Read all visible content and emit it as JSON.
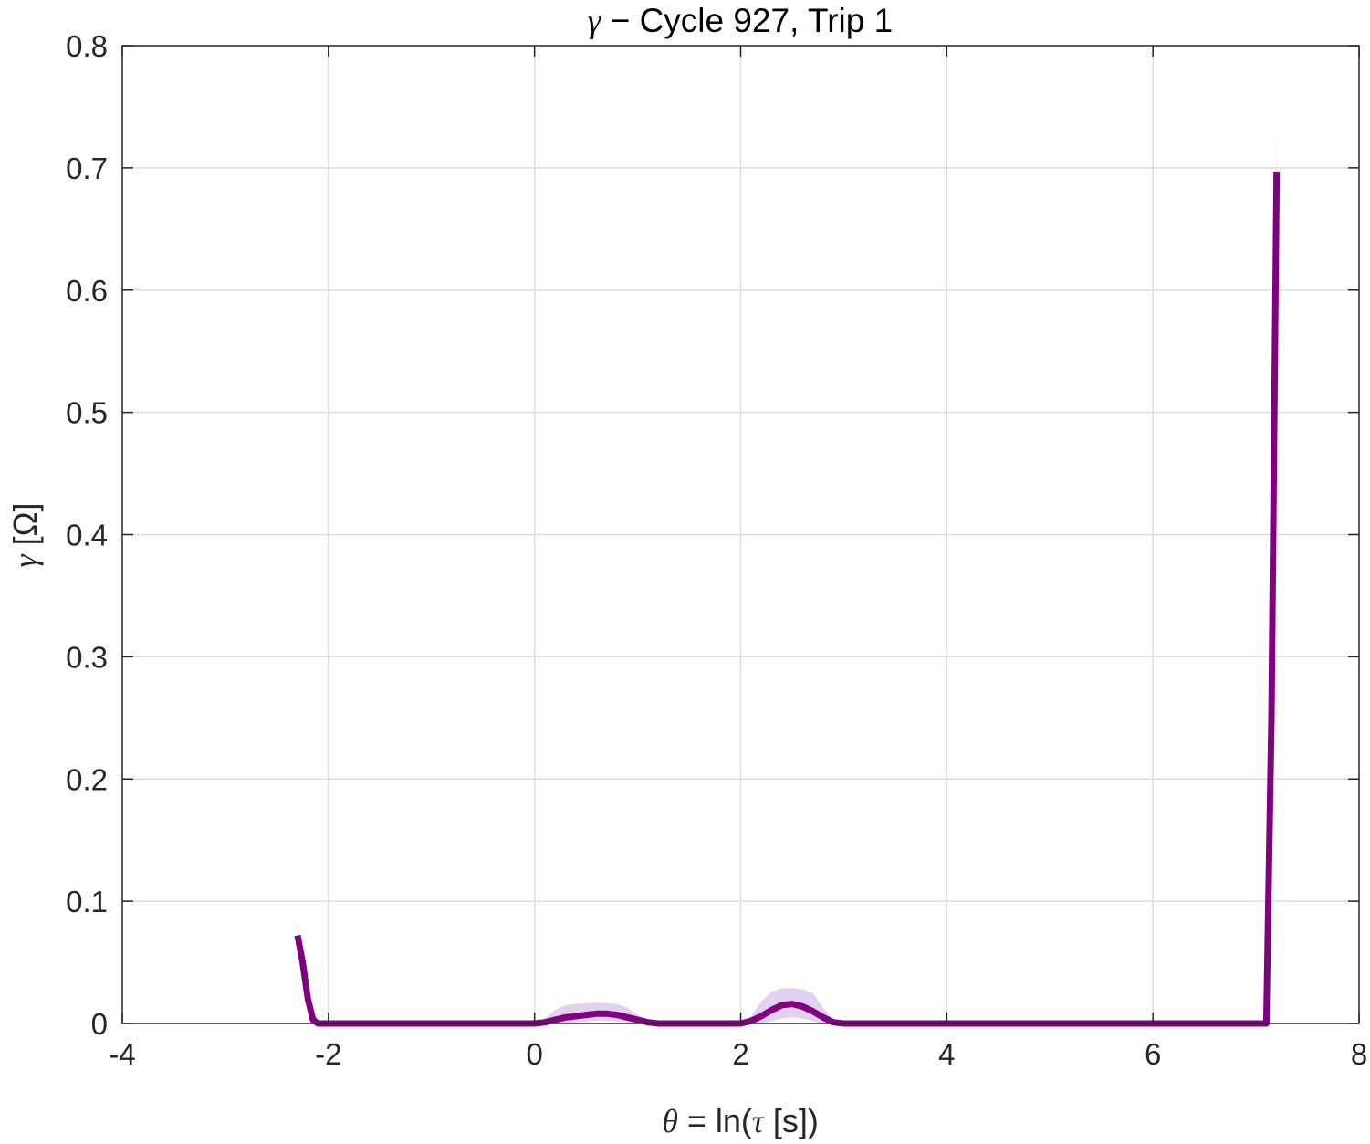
{
  "chart_data": {
    "type": "line",
    "title": {
      "symbol": "γ",
      "dash": " − ",
      "text": "Cycle 927, Trip 1"
    },
    "xlabel": {
      "symbol": "θ",
      "text_mid": " = ln(",
      "symbol2": "τ",
      "text_end": " [s])"
    },
    "ylabel": {
      "symbol": "γ",
      "text": " [Ω]"
    },
    "xlim": [
      -4,
      8
    ],
    "ylim": [
      0,
      0.8
    ],
    "xticks": [
      -4,
      -2,
      0,
      2,
      4,
      6,
      8
    ],
    "yticks": [
      0,
      0.1,
      0.2,
      0.3,
      0.4,
      0.5,
      0.6,
      0.7,
      0.8
    ],
    "xtick_labels": [
      "-4",
      "-2",
      "0",
      "2",
      "4",
      "6",
      "8"
    ],
    "ytick_labels": [
      "0",
      "0.1",
      "0.2",
      "0.3",
      "0.4",
      "0.5",
      "0.6",
      "0.7",
      "0.8"
    ],
    "grid": true,
    "colors": {
      "line": "#800080",
      "band": "#d9c2ee",
      "grid": "#dedede",
      "axes": "#262626"
    },
    "series": [
      {
        "x": [
          -2.3,
          -2.25,
          -2.2,
          -2.15,
          -2.1,
          -1.5,
          -1.0,
          -0.5,
          0.0,
          0.1,
          0.2,
          0.3,
          0.4,
          0.5,
          0.6,
          0.7,
          0.8,
          0.9,
          1.0,
          1.1,
          1.2,
          1.5,
          1.8,
          2.0,
          2.1,
          2.2,
          2.3,
          2.4,
          2.5,
          2.6,
          2.7,
          2.8,
          2.9,
          3.0,
          4.0,
          5.0,
          6.0,
          7.0,
          7.1,
          7.15,
          7.2
        ],
        "y": [
          0.072,
          0.05,
          0.02,
          0.003,
          0.0,
          0.0,
          0.0,
          0.0,
          0.0,
          0.001,
          0.003,
          0.005,
          0.006,
          0.007,
          0.008,
          0.008,
          0.007,
          0.005,
          0.003,
          0.001,
          0.0,
          0.0,
          0.0,
          0.0,
          0.002,
          0.006,
          0.011,
          0.015,
          0.016,
          0.014,
          0.01,
          0.005,
          0.001,
          0.0,
          0.0,
          0.0,
          0.0,
          0.0,
          0.0,
          0.25,
          0.697
        ]
      }
    ],
    "band": {
      "x": [
        -2.3,
        -2.25,
        -2.2,
        -2.1,
        -1.5,
        -0.5,
        0.0,
        0.1,
        0.2,
        0.3,
        0.4,
        0.6,
        0.8,
        0.9,
        1.0,
        1.1,
        1.2,
        1.8,
        2.0,
        2.1,
        2.2,
        2.3,
        2.4,
        2.5,
        2.6,
        2.7,
        2.8,
        2.9,
        3.0,
        7.1,
        7.15,
        7.2
      ],
      "lower": [
        0.068,
        0.046,
        0.017,
        0.0,
        0.0,
        0.0,
        0.0,
        0.0,
        0.0,
        0.0,
        0.001,
        0.002,
        0.002,
        0.001,
        0.0,
        0.0,
        0.0,
        0.0,
        0.0,
        0.0,
        0.0,
        0.002,
        0.004,
        0.005,
        0.004,
        0.002,
        0.0,
        0.0,
        0.0,
        0.0,
        0.2,
        0.69
      ],
      "upper": [
        0.082,
        0.056,
        0.025,
        0.001,
        0.0,
        0.0,
        0.0,
        0.004,
        0.011,
        0.015,
        0.016,
        0.017,
        0.016,
        0.013,
        0.007,
        0.002,
        0.0,
        0.0,
        0.0,
        0.006,
        0.018,
        0.026,
        0.029,
        0.029,
        0.028,
        0.025,
        0.013,
        0.003,
        0.0,
        0.0,
        0.3,
        0.73
      ]
    }
  }
}
